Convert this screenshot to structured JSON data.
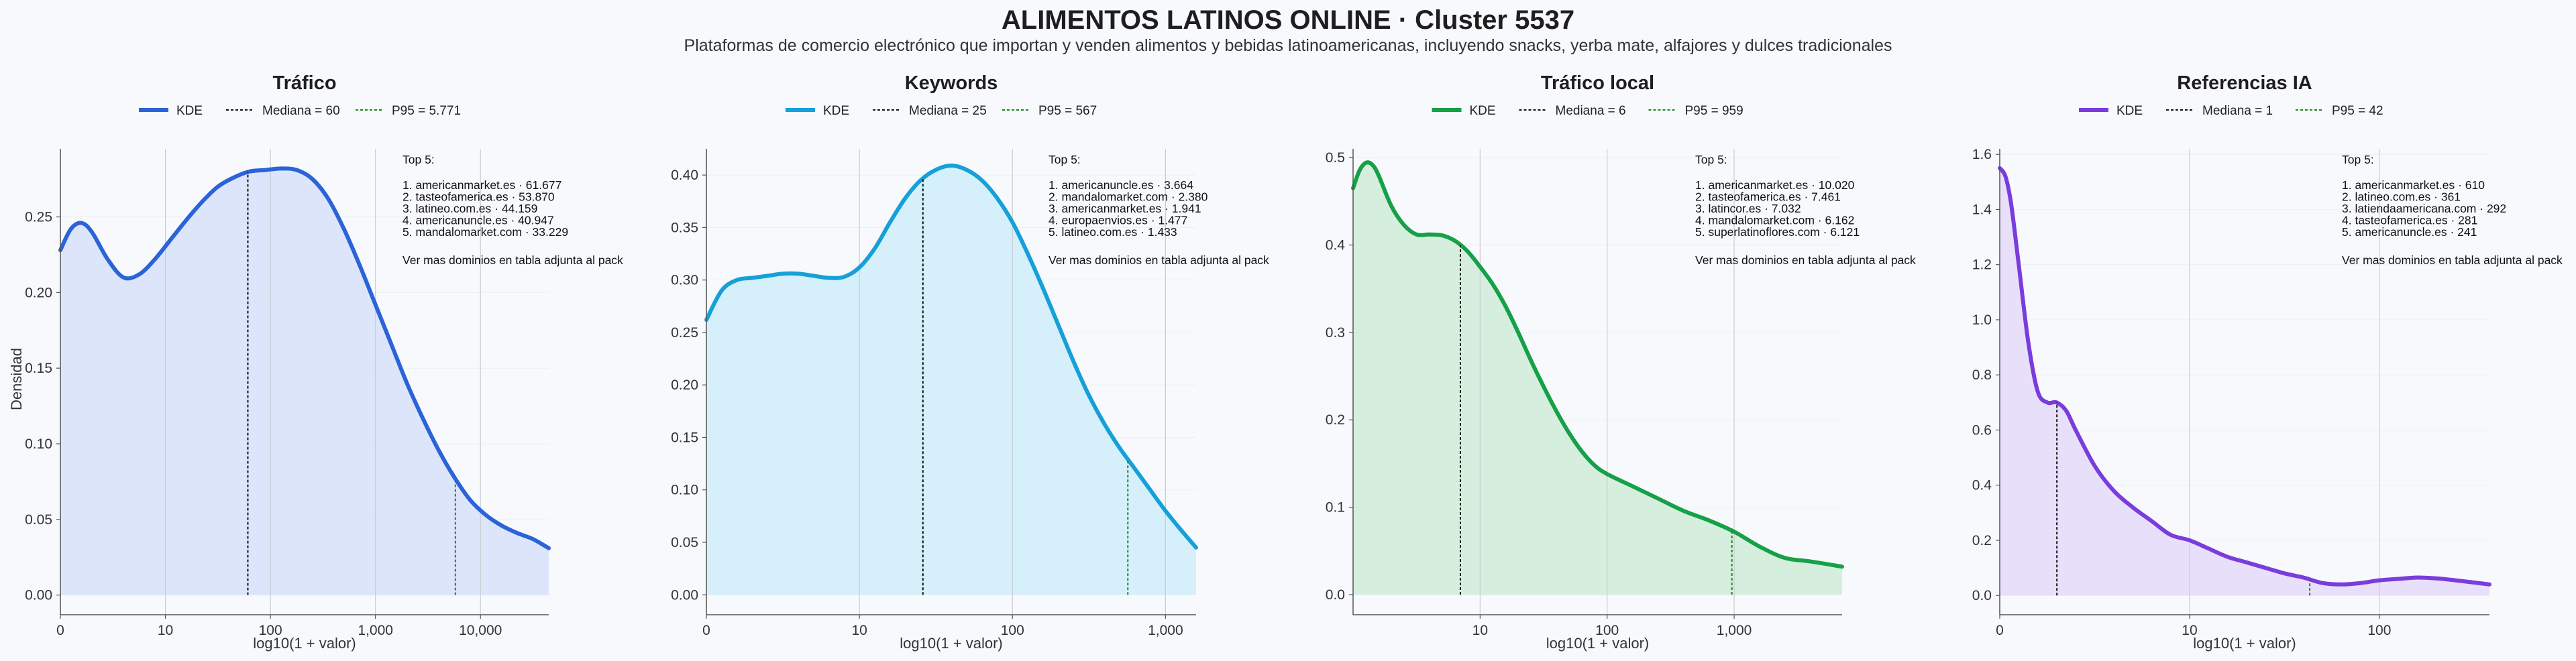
{
  "title": "ALIMENTOS LATINOS ONLINE · Cluster 5537",
  "subtitle": "Plataformas de comercio electrónico que importan y venden alimentos y bebidas latinoamericanas, incluyendo snacks, yerba mate, alfajores y dulces tradicionales",
  "ylabel": "Densidad",
  "chart_data": [
    {
      "type": "area",
      "title": "Tráfico",
      "color": "#2b63d9",
      "fill": "#d8e2fa",
      "xlabel": "log10(1 + valor)",
      "xlim": [
        0,
        4.65
      ],
      "ylim": [
        -0.013,
        0.295
      ],
      "xticks": [
        0,
        1,
        2,
        3,
        4
      ],
      "xtick_labels": [
        "0",
        "10",
        "100",
        "1,000",
        "10,000"
      ],
      "yticks": [
        0,
        0.05,
        0.1,
        0.15,
        0.2,
        0.25
      ],
      "ytick_labels": [
        "0.00",
        "0.05",
        "0.10",
        "0.15",
        "0.20",
        "0.25"
      ],
      "legend": [
        "KDE",
        "Mediana = 60",
        "P95 = 5.771"
      ],
      "median_x": 1.785,
      "p95_x": 3.761,
      "x": [
        0,
        0.1,
        0.2,
        0.3,
        0.45,
        0.6,
        0.75,
        0.9,
        1.05,
        1.2,
        1.35,
        1.5,
        1.65,
        1.8,
        1.95,
        2.1,
        2.25,
        2.4,
        2.55,
        2.7,
        2.85,
        3.0,
        3.15,
        3.3,
        3.45,
        3.6,
        3.75,
        3.9,
        4.05,
        4.2,
        4.35,
        4.5,
        4.65
      ],
      "y": [
        0.228,
        0.242,
        0.246,
        0.24,
        0.222,
        0.21,
        0.212,
        0.222,
        0.235,
        0.248,
        0.26,
        0.27,
        0.276,
        0.28,
        0.281,
        0.282,
        0.281,
        0.275,
        0.262,
        0.242,
        0.218,
        0.192,
        0.166,
        0.14,
        0.117,
        0.096,
        0.078,
        0.063,
        0.053,
        0.046,
        0.041,
        0.037,
        0.031
      ],
      "annotation": {
        "heading": "Top 5:",
        "items": [
          "1. americanmarket.es · 61.677",
          "2. tasteofamerica.es · 53.870",
          "3. latineo.com.es · 44.159",
          "4. americanuncle.es · 40.947",
          "5. mandalomarket.com · 33.229"
        ],
        "footer": "Ver mas dominios en tabla adjunta al pack"
      }
    },
    {
      "type": "area",
      "title": "Keywords",
      "color": "#16a0d8",
      "fill": "#d0eefb",
      "xlabel": "log10(1 + valor)",
      "xlim": [
        0,
        3.2
      ],
      "ylim": [
        -0.019,
        0.425
      ],
      "xticks": [
        0,
        1,
        2,
        3
      ],
      "xtick_labels": [
        "0",
        "10",
        "100",
        "1,000"
      ],
      "yticks": [
        0,
        0.05,
        0.1,
        0.15,
        0.2,
        0.25,
        0.3,
        0.35,
        0.4
      ],
      "ytick_labels": [
        "0.00",
        "0.05",
        "0.10",
        "0.15",
        "0.20",
        "0.25",
        "0.30",
        "0.35",
        "0.40"
      ],
      "legend": [
        "KDE",
        "Mediana = 25",
        "P95 = 567"
      ],
      "median_x": 1.415,
      "p95_x": 2.754,
      "x": [
        0,
        0.1,
        0.2,
        0.3,
        0.4,
        0.5,
        0.6,
        0.7,
        0.8,
        0.9,
        1.0,
        1.1,
        1.2,
        1.3,
        1.4,
        1.5,
        1.6,
        1.7,
        1.8,
        1.9,
        2.0,
        2.1,
        2.2,
        2.3,
        2.4,
        2.5,
        2.6,
        2.7,
        2.8,
        2.9,
        3.0,
        3.1,
        3.2
      ],
      "y": [
        0.262,
        0.29,
        0.3,
        0.302,
        0.304,
        0.306,
        0.306,
        0.304,
        0.302,
        0.303,
        0.312,
        0.33,
        0.355,
        0.378,
        0.395,
        0.405,
        0.409,
        0.405,
        0.395,
        0.378,
        0.355,
        0.325,
        0.292,
        0.257,
        0.222,
        0.19,
        0.163,
        0.14,
        0.12,
        0.1,
        0.08,
        0.062,
        0.045
      ],
      "annotation": {
        "heading": "Top 5:",
        "items": [
          "1. americanuncle.es · 3.664",
          "2. mandalomarket.com · 2.380",
          "3. americanmarket.es · 1.941",
          "4. europaenvios.es · 1.477",
          "5. latineo.com.es · 1.433"
        ],
        "footer": "Ver mas dominios en tabla adjunta al pack"
      }
    },
    {
      "type": "area",
      "title": "Tráfico local",
      "color": "#16a048",
      "fill": "#d2ecda",
      "xlabel": "log10(1 + valor)",
      "xlim": [
        0,
        3.85
      ],
      "ylim": [
        -0.023,
        0.51
      ],
      "xticks": [
        1,
        2,
        3
      ],
      "xtick_labels": [
        "10",
        "100",
        "1,000"
      ],
      "yticks": [
        0,
        0.1,
        0.2,
        0.3,
        0.4,
        0.5
      ],
      "ytick_labels": [
        "0.0",
        "0.1",
        "0.2",
        "0.3",
        "0.4",
        "0.5"
      ],
      "legend": [
        "KDE",
        "Mediana = 6",
        "P95 = 959"
      ],
      "median_x": 0.845,
      "p95_x": 2.982,
      "x": [
        0,
        0.05,
        0.1,
        0.15,
        0.2,
        0.3,
        0.4,
        0.5,
        0.6,
        0.7,
        0.8,
        0.9,
        1.0,
        1.1,
        1.2,
        1.3,
        1.4,
        1.5,
        1.6,
        1.7,
        1.8,
        1.9,
        2.0,
        2.2,
        2.4,
        2.6,
        2.8,
        3.0,
        3.2,
        3.4,
        3.6,
        3.85
      ],
      "y": [
        0.465,
        0.485,
        0.494,
        0.492,
        0.48,
        0.445,
        0.423,
        0.412,
        0.412,
        0.411,
        0.405,
        0.393,
        0.375,
        0.355,
        0.33,
        0.3,
        0.268,
        0.238,
        0.21,
        0.185,
        0.164,
        0.148,
        0.138,
        0.124,
        0.11,
        0.096,
        0.085,
        0.072,
        0.055,
        0.042,
        0.038,
        0.032
      ],
      "annotation": {
        "heading": "Top 5:",
        "items": [
          "1. americanmarket.es · 10.020",
          "2. tasteofamerica.es · 7.461",
          "3. latincor.es · 7.032",
          "4. mandalomarket.com · 6.162",
          "5. superlatinoflores.com · 6.121"
        ],
        "footer": "Ver mas dominios en tabla adjunta al pack"
      }
    },
    {
      "type": "area",
      "title": "Referencias IA",
      "color": "#7a3ddb",
      "fill": "#e6dcfa",
      "xlabel": "log10(1 + valor)",
      "xlim": [
        0,
        2.58
      ],
      "ylim": [
        -0.07,
        1.62
      ],
      "xticks": [
        0,
        1,
        2
      ],
      "xtick_labels": [
        "0",
        "10",
        "100"
      ],
      "yticks": [
        0,
        0.2,
        0.4,
        0.6,
        0.8,
        1.0,
        1.2,
        1.4,
        1.6
      ],
      "ytick_labels": [
        "0.0",
        "0.2",
        "0.4",
        "0.6",
        "0.8",
        "1.0",
        "1.2",
        "1.4",
        "1.6"
      ],
      "legend": [
        "KDE",
        "Mediana = 1",
        "P95 = 42"
      ],
      "median_x": 0.301,
      "p95_x": 1.633,
      "x": [
        0,
        0.03,
        0.06,
        0.1,
        0.15,
        0.2,
        0.25,
        0.3,
        0.35,
        0.4,
        0.5,
        0.6,
        0.7,
        0.8,
        0.9,
        1.0,
        1.1,
        1.2,
        1.3,
        1.4,
        1.5,
        1.6,
        1.7,
        1.8,
        1.9,
        2.0,
        2.1,
        2.2,
        2.3,
        2.4,
        2.58
      ],
      "y": [
        1.55,
        1.52,
        1.42,
        1.2,
        0.92,
        0.74,
        0.7,
        0.7,
        0.67,
        0.6,
        0.47,
        0.38,
        0.32,
        0.27,
        0.22,
        0.2,
        0.17,
        0.14,
        0.12,
        0.1,
        0.08,
        0.065,
        0.045,
        0.04,
        0.045,
        0.055,
        0.06,
        0.065,
        0.062,
        0.055,
        0.04
      ],
      "annotation": {
        "heading": "Top 5:",
        "items": [
          "1. americanmarket.es · 610",
          "2. latineo.com.es · 361",
          "3. latiendaamericana.com · 292",
          "4. tasteofamerica.es · 281",
          "5. americanuncle.es · 241"
        ],
        "footer": "Ver mas dominios en tabla adjunta al pack"
      }
    }
  ]
}
